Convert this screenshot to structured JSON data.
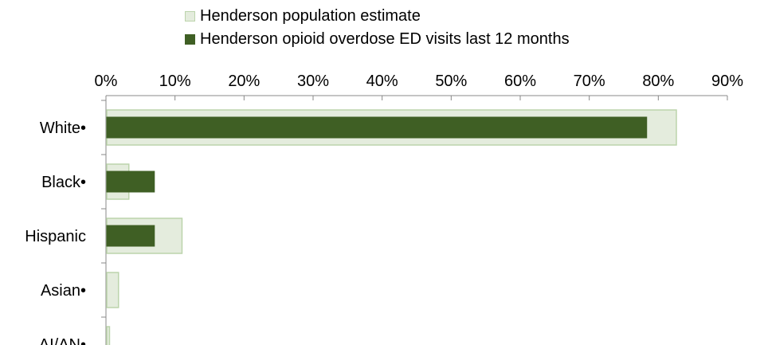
{
  "chart_data": {
    "type": "bar",
    "orientation": "horizontal",
    "title": "",
    "xlabel": "",
    "ylabel": "",
    "xlim": [
      0,
      90
    ],
    "x_ticks": [
      0,
      10,
      20,
      30,
      40,
      50,
      60,
      70,
      80,
      90
    ],
    "x_tick_labels": [
      "0%",
      "10%",
      "20%",
      "30%",
      "40%",
      "50%",
      "60%",
      "70%",
      "80%",
      "90%"
    ],
    "x_axis_position": "top",
    "grid": false,
    "legend_position": "top",
    "categories": [
      "White•",
      "Black•",
      "Hispanic",
      "Asian•",
      "AI/AN•"
    ],
    "series": [
      {
        "name": "Henderson population estimate",
        "values": [
          82.5,
          3.2,
          10.9,
          1.7,
          0.4
        ],
        "color": "#e4ecdd",
        "edge_color": "#bcd4ac"
      },
      {
        "name": "Henderson opioid overdose ED visits last 12 months",
        "values": [
          78.2,
          6.9,
          6.9,
          0,
          0
        ],
        "color": "#3f5f24",
        "edge_color": "#3f5f24"
      }
    ]
  }
}
